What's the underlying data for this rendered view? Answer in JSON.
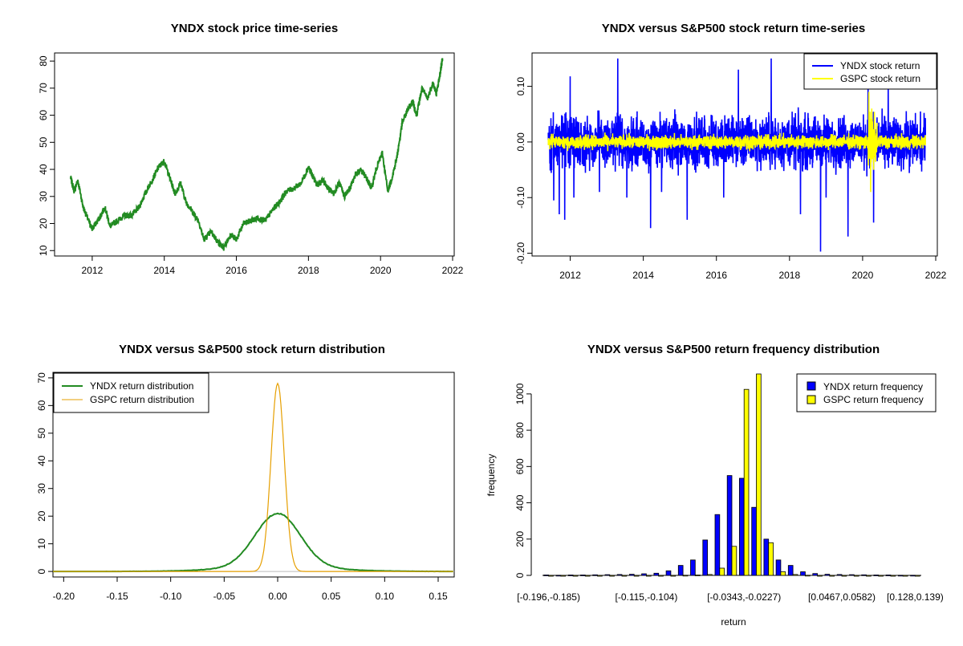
{
  "chart_data": [
    {
      "type": "line",
      "title": "YNDX stock price time-series",
      "xlabel": "",
      "ylabel": "",
      "xlim": [
        2011.0,
        2022.0
      ],
      "ylim": [
        8,
        83
      ],
      "x_ticks": [
        "2012",
        "2014",
        "2016",
        "2018",
        "2020",
        "2022"
      ],
      "y_ticks": [
        "10",
        "20",
        "30",
        "40",
        "50",
        "60",
        "70",
        "80"
      ],
      "color": "#228B22",
      "series": [
        {
          "x": [
            2011.4,
            2011.5,
            2011.6,
            2011.75,
            2011.9,
            2012.0,
            2012.2,
            2012.35,
            2012.5,
            2012.7,
            2012.9,
            2013.1,
            2013.3,
            2013.5,
            2013.7,
            2013.85,
            2014.0,
            2014.15,
            2014.3,
            2014.45,
            2014.6,
            2014.75,
            2014.95,
            2015.1,
            2015.3,
            2015.5,
            2015.65,
            2015.85,
            2016.0,
            2016.2,
            2016.4,
            2016.6,
            2016.8,
            2017.0,
            2017.2,
            2017.4,
            2017.6,
            2017.8,
            2018.0,
            2018.1,
            2018.25,
            2018.4,
            2018.55,
            2018.7,
            2018.85,
            2019.0,
            2019.15,
            2019.3,
            2019.45,
            2019.6,
            2019.75,
            2019.9,
            2020.05,
            2020.2,
            2020.3,
            2020.45,
            2020.6,
            2020.75,
            2020.9,
            2021.0,
            2021.15,
            2021.3,
            2021.45,
            2021.55,
            2021.65,
            2021.72
          ],
          "y": [
            37,
            32,
            36,
            26,
            21,
            18,
            22,
            26,
            19,
            21,
            23,
            23,
            26,
            32,
            37,
            41,
            43,
            37,
            31,
            35,
            28,
            25,
            21,
            14,
            17,
            13,
            11,
            16,
            14,
            20,
            21,
            22,
            21,
            25,
            28,
            32,
            33,
            35,
            41,
            38,
            34,
            36,
            33,
            31,
            35,
            30,
            33,
            38,
            40,
            37,
            33,
            41,
            46,
            32,
            36,
            44,
            57,
            62,
            65,
            60,
            70,
            66,
            72,
            68,
            75,
            81
          ]
        }
      ]
    },
    {
      "type": "line",
      "title": "YNDX versus S&P500 stock return time-series",
      "xlabel": "",
      "ylabel": "",
      "xlim": [
        2011.0,
        2022.0
      ],
      "ylim": [
        -0.205,
        0.16
      ],
      "x_ticks": [
        "2012",
        "2014",
        "2016",
        "2018",
        "2020",
        "2022"
      ],
      "y_ticks": [
        "-0.20",
        "-0.10",
        "0.00",
        "0.10"
      ],
      "legend_position": "top-right",
      "series": [
        {
          "name": "YNDX stock return",
          "color": "#0000FF",
          "amplitude": 0.045,
          "spikes": [
            {
              "x": 2011.55,
              "y": -0.105
            },
            {
              "x": 2011.7,
              "y": -0.13
            },
            {
              "x": 2011.85,
              "y": -0.14
            },
            {
              "x": 2012.0,
              "y": 0.118
            },
            {
              "x": 2012.1,
              "y": -0.1
            },
            {
              "x": 2012.8,
              "y": -0.09
            },
            {
              "x": 2013.3,
              "y": 0.15
            },
            {
              "x": 2013.55,
              "y": -0.1
            },
            {
              "x": 2014.2,
              "y": -0.155
            },
            {
              "x": 2014.5,
              "y": -0.09
            },
            {
              "x": 2015.2,
              "y": -0.14
            },
            {
              "x": 2016.2,
              "y": -0.1
            },
            {
              "x": 2016.6,
              "y": 0.13
            },
            {
              "x": 2017.5,
              "y": 0.15
            },
            {
              "x": 2018.3,
              "y": -0.13
            },
            {
              "x": 2018.85,
              "y": -0.197
            },
            {
              "x": 2019.0,
              "y": -0.1
            },
            {
              "x": 2019.6,
              "y": -0.17
            },
            {
              "x": 2020.15,
              "y": 0.13
            },
            {
              "x": 2020.3,
              "y": -0.145
            },
            {
              "x": 2020.7,
              "y": 0.105
            }
          ]
        },
        {
          "name": "GSPC stock return",
          "color": "#FFFF00",
          "amplitude": 0.012,
          "spikes": [
            {
              "x": 2020.17,
              "y": 0.09
            },
            {
              "x": 2020.22,
              "y": -0.09
            },
            {
              "x": 2020.25,
              "y": 0.06
            },
            {
              "x": 2020.3,
              "y": -0.05
            }
          ]
        }
      ]
    },
    {
      "type": "line",
      "title": "YNDX versus S&P500 stock return distribution",
      "xlabel": "",
      "ylabel": "",
      "xlim": [
        -0.21,
        0.165
      ],
      "ylim": [
        -2,
        72
      ],
      "x_ticks": [
        "-0.20",
        "-0.15",
        "-0.10",
        "-0.05",
        "0.00",
        "0.05",
        "0.10",
        "0.15"
      ],
      "y_ticks": [
        "0",
        "10",
        "20",
        "30",
        "40",
        "50",
        "60",
        "70"
      ],
      "legend_position": "top-left",
      "series": [
        {
          "name": "YNDX return distribution",
          "color": "#228B22",
          "peak": 19.5,
          "sigma": 0.021
        },
        {
          "name": "GSPC return distribution",
          "color": "#E69F00",
          "peak": 68,
          "sigma": 0.0062
        }
      ]
    },
    {
      "type": "bar",
      "title": "YNDX versus S&P500 return frequency distribution",
      "xlabel": "return",
      "ylabel": "frequency",
      "ylim": [
        0,
        1110
      ],
      "legend_position": "top-right",
      "x_tick_labels": [
        "[-0.196,-0.185)",
        "[-0.115,-0.104)",
        "[-0.0343,-0.0227)",
        "[0.0467,0.0582)",
        "[0.128,0.139)"
      ],
      "y_ticks": [
        "0",
        "200",
        "400",
        "600",
        "800",
        "1000"
      ],
      "series": [
        {
          "name": "YNDX return frequency",
          "color": "#0000FF",
          "values": [
            2,
            1,
            2,
            2,
            3,
            4,
            5,
            6,
            9,
            12,
            25,
            55,
            85,
            195,
            335,
            550,
            535,
            375,
            200,
            85,
            55,
            20,
            10,
            6,
            5,
            4,
            3,
            2,
            2,
            1,
            1
          ]
        },
        {
          "name": "GSPC return frequency",
          "color": "#FFFF00",
          "values": [
            0,
            0,
            0,
            0,
            0,
            0,
            0,
            0,
            0,
            0,
            0,
            1,
            2,
            5,
            40,
            160,
            1025,
            1110,
            180,
            20,
            5,
            1,
            0,
            0,
            0,
            0,
            0,
            0,
            0,
            0,
            0
          ]
        }
      ]
    }
  ]
}
